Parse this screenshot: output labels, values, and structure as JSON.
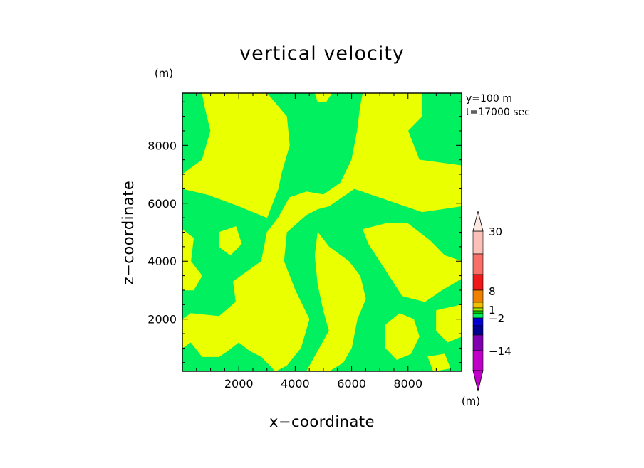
{
  "chart_data": {
    "type": "heatmap",
    "title": "vertical velocity",
    "xlabel": "x−coordinate",
    "ylabel": "z−coordinate",
    "x_unit": "(m)",
    "y_unit": "(m)",
    "colorbar_unit": "(m)",
    "annotation_lines": [
      "y=100 m",
      "t=17000 sec"
    ],
    "xlim": [
      0,
      9900
    ],
    "ylim": [
      200,
      9800
    ],
    "x_ticks": [
      2000,
      4000,
      6000,
      8000
    ],
    "y_ticks": [
      2000,
      4000,
      6000,
      8000
    ],
    "x_tick_labels": [
      "2000",
      "4000",
      "6000",
      "8000"
    ],
    "y_tick_labels": [
      "2000",
      "4000",
      "6000",
      "8000"
    ],
    "grid": false,
    "field": {
      "background_color": "#00f060",
      "background_range": "-2 to 0",
      "positive_color": "#eaff00",
      "positive_range": "0 to 1",
      "positive_regions": [
        [
          [
            700,
            9800
          ],
          [
            3000,
            9800
          ],
          [
            3700,
            9000
          ],
          [
            3800,
            8000
          ],
          [
            3500,
            7000
          ],
          [
            3400,
            6500
          ],
          [
            3000,
            5500
          ],
          [
            2000,
            5900
          ],
          [
            900,
            6300
          ],
          [
            0,
            6500
          ],
          [
            0,
            7000
          ],
          [
            700,
            7500
          ],
          [
            1000,
            8500
          ],
          [
            800,
            9300
          ]
        ],
        [
          [
            4700,
            9800
          ],
          [
            5300,
            9800
          ],
          [
            5100,
            9500
          ],
          [
            4800,
            9500
          ]
        ],
        [
          [
            6400,
            9800
          ],
          [
            8500,
            9800
          ],
          [
            8500,
            9000
          ],
          [
            8000,
            8500
          ],
          [
            8400,
            7500
          ],
          [
            9900,
            7300
          ],
          [
            9900,
            5900
          ],
          [
            8500,
            5700
          ],
          [
            7000,
            6200
          ],
          [
            6100,
            6500
          ],
          [
            5200,
            5900
          ],
          [
            4800,
            5800
          ],
          [
            4400,
            5600
          ],
          [
            3700,
            5000
          ],
          [
            3600,
            4000
          ],
          [
            4000,
            3000
          ],
          [
            4500,
            2000
          ],
          [
            4200,
            1000
          ],
          [
            3700,
            400
          ],
          [
            3300,
            200
          ],
          [
            2800,
            700
          ],
          [
            2400,
            900
          ],
          [
            2000,
            1200
          ],
          [
            1600,
            900
          ],
          [
            1300,
            700
          ],
          [
            700,
            700
          ],
          [
            300,
            1200
          ],
          [
            0,
            1000
          ],
          [
            0,
            2000
          ],
          [
            300,
            2200
          ],
          [
            1300,
            2100
          ],
          [
            1900,
            2600
          ],
          [
            1800,
            3300
          ],
          [
            2800,
            4000
          ],
          [
            3000,
            5000
          ],
          [
            3400,
            5500
          ],
          [
            3800,
            6200
          ],
          [
            4400,
            6400
          ],
          [
            5000,
            6300
          ],
          [
            5600,
            6700
          ],
          [
            6000,
            7500
          ],
          [
            6200,
            8500
          ],
          [
            6300,
            9300
          ]
        ],
        [
          [
            4800,
            5000
          ],
          [
            5200,
            4500
          ],
          [
            5900,
            4000
          ],
          [
            6300,
            3500
          ],
          [
            6500,
            2700
          ],
          [
            6200,
            2000
          ],
          [
            6000,
            1000
          ],
          [
            5700,
            500
          ],
          [
            5200,
            200
          ],
          [
            4400,
            200
          ],
          [
            4800,
            900
          ],
          [
            5200,
            1600
          ],
          [
            5000,
            2300
          ],
          [
            4800,
            3200
          ],
          [
            4700,
            4200
          ]
        ],
        [
          [
            6400,
            5100
          ],
          [
            7200,
            5300
          ],
          [
            8000,
            5300
          ],
          [
            8800,
            4700
          ],
          [
            9300,
            4200
          ],
          [
            9900,
            4000
          ],
          [
            9900,
            3400
          ],
          [
            9200,
            3000
          ],
          [
            8600,
            2600
          ],
          [
            7800,
            2800
          ],
          [
            7400,
            3400
          ],
          [
            7000,
            4000
          ],
          [
            6600,
            4600
          ]
        ],
        [
          [
            7200,
            1800
          ],
          [
            7700,
            2200
          ],
          [
            8200,
            2000
          ],
          [
            8400,
            1400
          ],
          [
            8100,
            800
          ],
          [
            7600,
            600
          ],
          [
            7200,
            1000
          ]
        ],
        [
          [
            9000,
            2300
          ],
          [
            9900,
            2500
          ],
          [
            9900,
            1400
          ],
          [
            9400,
            1200
          ],
          [
            9000,
            1600
          ]
        ],
        [
          [
            8700,
            700
          ],
          [
            9300,
            800
          ],
          [
            9500,
            300
          ],
          [
            8900,
            200
          ]
        ],
        [
          [
            0,
            5100
          ],
          [
            400,
            4800
          ],
          [
            300,
            4000
          ],
          [
            700,
            3500
          ],
          [
            400,
            3000
          ],
          [
            0,
            3000
          ]
        ],
        [
          [
            1300,
            5000
          ],
          [
            1900,
            5200
          ],
          [
            2100,
            4600
          ],
          [
            1700,
            4200
          ],
          [
            1300,
            4500
          ]
        ],
        [
          [
            2400,
            3600
          ],
          [
            2800,
            3400
          ],
          [
            2700,
            3000
          ],
          [
            2300,
            3200
          ]
        ],
        [
          [
            9500,
            6300
          ],
          [
            9900,
            6500
          ],
          [
            9900,
            6100
          ]
        ]
      ]
    },
    "colorbar": {
      "labels": [
        "30",
        "8",
        "1",
        "−2",
        "−14"
      ],
      "label_values": [
        30,
        8,
        1,
        -2,
        -14
      ],
      "colors_top_to_bottom": [
        "#fcc0b8",
        "#fa6e68",
        "#f01818",
        "#f08000",
        "#f0c000",
        "#a0f000",
        "#00c800",
        "#00f060",
        "#0000d0",
        "#000090",
        "#8000b0",
        "#c000c8"
      ],
      "top_arrow_color": "#fce8e0",
      "bottom_arrow_color": "#c000c8"
    }
  }
}
